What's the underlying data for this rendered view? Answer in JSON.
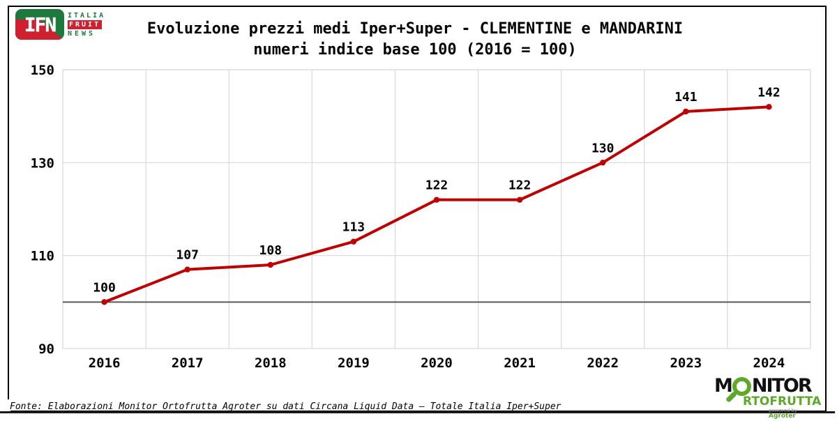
{
  "page": {
    "title_line1": "Evoluzione prezzi medi Iper+Super - CLEMENTINE e MANDARINI",
    "title_line2": "numeri indice base 100 (2016 = 100)",
    "source": "Fonte: Elaborazioni Monitor Ortofrutta Agroter su dati Circana Liquid Data – Totale Italia Iper+Super"
  },
  "ifn_logo": {
    "acronym": "IFN",
    "line1": "ITALIA",
    "line2": "FRUIT",
    "line3": "NEWS"
  },
  "monitor_logo": {
    "word_start": "M",
    "word_end": "NITOR",
    "line2": "RTOFRUTTA",
    "powered_by": "powered by ",
    "brand": "Agroter"
  },
  "colors": {
    "line": "#C00000",
    "marker": "#C00000",
    "baseline": "#595959",
    "grid": "#D9D9D9",
    "ifn_green": "#1E7A3C",
    "ifn_red": "#CE202F",
    "monitor_green": "#5EA82B"
  },
  "chart_data": {
    "type": "line",
    "title": "Evoluzione prezzi medi Iper+Super - CLEMENTINE e MANDARINI",
    "subtitle": "numeri indice base 100 (2016 = 100)",
    "categories": [
      "2016",
      "2017",
      "2018",
      "2019",
      "2020",
      "2021",
      "2022",
      "2023",
      "2024"
    ],
    "values": [
      100,
      107,
      108,
      113,
      122,
      122,
      130,
      141,
      142
    ],
    "data_labels": [
      100,
      107,
      108,
      113,
      122,
      122,
      130,
      141,
      142
    ],
    "xlabel": "",
    "ylabel": "",
    "ylim": [
      90,
      150
    ],
    "yticks": [
      90,
      110,
      130,
      150
    ],
    "reference_line": 100,
    "grid": true,
    "legend": false
  }
}
